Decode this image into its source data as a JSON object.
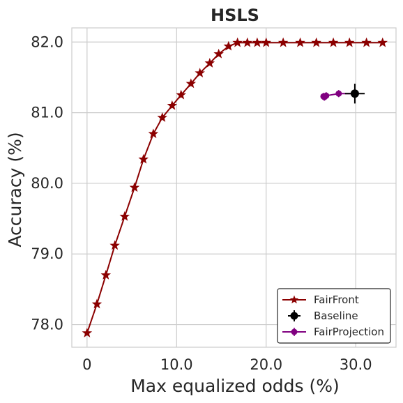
{
  "chart_data": {
    "type": "line",
    "title": "HSLS",
    "xlabel": "Max equalized odds (%)",
    "ylabel": "Accuracy (%)",
    "xlim": [
      -1.7,
      34.5
    ],
    "ylim": [
      77.68,
      82.2
    ],
    "xticks": [
      0,
      10,
      20,
      30
    ],
    "xtick_labels": [
      "0",
      "10.0",
      "20.0",
      "30.0"
    ],
    "yticks": [
      78,
      79,
      80,
      81,
      82
    ],
    "ytick_labels": [
      "78.0",
      "79.0",
      "80.0",
      "81.0",
      "82.0"
    ],
    "grid": true,
    "legend_position": "lower-right",
    "series": [
      {
        "name": "FairFront",
        "color": "#8b0000",
        "marker": "star",
        "points": [
          [
            0.0,
            77.88
          ],
          [
            1.1,
            78.29
          ],
          [
            2.1,
            78.7
          ],
          [
            3.1,
            79.12
          ],
          [
            4.2,
            79.53
          ],
          [
            5.3,
            79.94
          ],
          [
            6.3,
            80.34
          ],
          [
            7.4,
            80.7
          ],
          [
            8.4,
            80.93
          ],
          [
            9.5,
            81.1
          ],
          [
            10.5,
            81.25
          ],
          [
            11.6,
            81.41
          ],
          [
            12.6,
            81.56
          ],
          [
            13.7,
            81.7
          ],
          [
            14.7,
            81.83
          ],
          [
            15.8,
            81.94
          ],
          [
            16.8,
            81.99
          ],
          [
            17.9,
            81.99
          ],
          [
            19.0,
            81.99
          ],
          [
            20.0,
            81.99
          ],
          [
            21.9,
            81.99
          ],
          [
            23.8,
            81.99
          ],
          [
            25.6,
            81.99
          ],
          [
            27.5,
            81.99
          ],
          [
            29.3,
            81.99
          ],
          [
            31.2,
            81.99
          ],
          [
            33.0,
            81.99
          ]
        ]
      },
      {
        "name": "Baseline",
        "color": "#000000",
        "marker": "circle",
        "points": [
          [
            29.9,
            81.27
          ]
        ],
        "xerr": [
          1.1
        ],
        "yerr": [
          0.14
        ]
      },
      {
        "name": "FairProjection",
        "color": "#800080",
        "marker": "circle",
        "points": [
          [
            26.4,
            81.23
          ],
          [
            26.5,
            81.22
          ],
          [
            26.7,
            81.24
          ],
          [
            28.1,
            81.27
          ],
          [
            29.9,
            81.27
          ]
        ],
        "yerr": [
          0.05,
          0.05,
          0.05,
          0.05,
          0.05
        ]
      }
    ]
  }
}
